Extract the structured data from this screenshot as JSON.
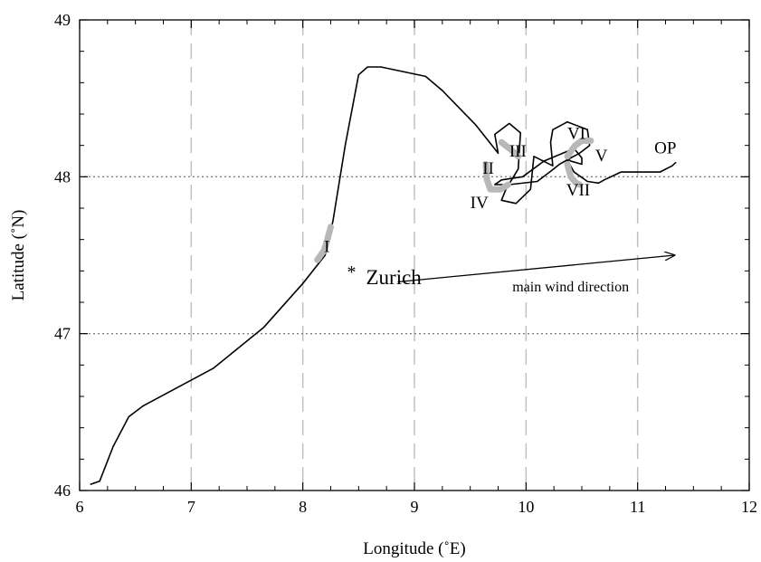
{
  "chart_data": {
    "type": "line",
    "xlabel": "Longitude (˚E)",
    "ylabel": "Latitude (˚N)",
    "xlim": [
      6,
      12
    ],
    "ylim": [
      46,
      49
    ],
    "xticks": [
      6,
      7,
      8,
      9,
      10,
      11,
      12
    ],
    "yticks": [
      46,
      47,
      48,
      49
    ],
    "vertical_grid": {
      "x": [
        7,
        8,
        9,
        10,
        11
      ],
      "style": "dashed",
      "color": "#c0c0c0"
    },
    "horizontal_grid": {
      "y": [
        47,
        48
      ],
      "style": "dotted",
      "color": "#808080"
    },
    "series": [
      {
        "color": "#000000",
        "points": [
          [
            6.1,
            46.04
          ],
          [
            6.18,
            46.06
          ],
          [
            6.3,
            46.28
          ],
          [
            6.44,
            46.47
          ],
          [
            6.57,
            46.54
          ],
          [
            7.2,
            46.78
          ],
          [
            7.65,
            47.04
          ],
          [
            8.0,
            47.32
          ],
          [
            8.2,
            47.5
          ],
          [
            8.27,
            47.72
          ],
          [
            8.38,
            48.2
          ],
          [
            8.5,
            48.65
          ],
          [
            8.58,
            48.7
          ],
          [
            8.7,
            48.7
          ],
          [
            9.1,
            48.64
          ],
          [
            9.25,
            48.55
          ],
          [
            9.55,
            48.33
          ],
          [
            9.75,
            48.15
          ],
          [
            9.72,
            48.27
          ],
          [
            9.85,
            48.34
          ],
          [
            9.95,
            48.28
          ],
          [
            9.93,
            48.05
          ],
          [
            9.82,
            47.92
          ],
          [
            9.78,
            47.85
          ],
          [
            9.91,
            47.83
          ],
          [
            10.04,
            47.92
          ],
          [
            10.07,
            48.13
          ],
          [
            10.24,
            48.07
          ],
          [
            10.22,
            48.22
          ],
          [
            10.24,
            48.3
          ],
          [
            10.37,
            48.35
          ],
          [
            10.55,
            48.3
          ],
          [
            10.57,
            48.2
          ],
          [
            10.48,
            48.15
          ],
          [
            10.4,
            48.12
          ],
          [
            10.3,
            48.08
          ],
          [
            10.23,
            48.04
          ],
          [
            10.1,
            47.97
          ],
          [
            9.85,
            47.95
          ],
          [
            9.72,
            47.95
          ],
          [
            9.78,
            47.98
          ],
          [
            9.97,
            48.0
          ],
          [
            10.16,
            48.1
          ],
          [
            10.33,
            48.15
          ],
          [
            10.43,
            48.18
          ],
          [
            10.5,
            48.12
          ],
          [
            10.5,
            48.08
          ],
          [
            10.4,
            48.1
          ],
          [
            10.36,
            48.12
          ],
          [
            10.43,
            48.03
          ],
          [
            10.55,
            47.97
          ],
          [
            10.65,
            47.96
          ],
          [
            10.7,
            47.98
          ],
          [
            10.85,
            48.03
          ],
          [
            11.2,
            48.03
          ],
          [
            11.31,
            48.07
          ],
          [
            11.34,
            48.09
          ]
        ]
      },
      {
        "name": "I",
        "color": "#b8b8b8",
        "points": [
          [
            8.13,
            47.47
          ],
          [
            8.19,
            47.53
          ],
          [
            8.22,
            47.6
          ],
          [
            8.25,
            47.68
          ]
        ]
      },
      {
        "name": "II",
        "color": "#b8b8b8",
        "points": [
          [
            9.64,
            48.08
          ],
          [
            9.65,
            47.98
          ],
          [
            9.68,
            47.92
          ],
          [
            9.77,
            47.92
          ],
          [
            9.84,
            47.95
          ]
        ]
      },
      {
        "name": "III",
        "color": "#b8b8b8",
        "points": [
          [
            9.78,
            48.22
          ],
          [
            9.87,
            48.17
          ],
          [
            9.93,
            48.13
          ]
        ]
      },
      {
        "name": "V",
        "color": "#b8b8b8",
        "points": [
          [
            10.37,
            48.13
          ],
          [
            10.44,
            48.2
          ],
          [
            10.5,
            48.23
          ],
          [
            10.58,
            48.23
          ]
        ]
      },
      {
        "name": "VII",
        "color": "#b8b8b8",
        "points": [
          [
            10.37,
            48.08
          ],
          [
            10.4,
            48.0
          ],
          [
            10.45,
            47.96
          ],
          [
            10.48,
            47.95
          ]
        ]
      }
    ],
    "labels": [
      {
        "text": "I",
        "x": 8.19,
        "y": 47.52
      },
      {
        "text": "II",
        "x": 9.61,
        "y": 48.02
      },
      {
        "text": "III",
        "x": 9.85,
        "y": 48.13
      },
      {
        "text": "IV",
        "x": 9.5,
        "y": 47.8
      },
      {
        "text": "V",
        "x": 10.62,
        "y": 48.1
      },
      {
        "text": "VI",
        "x": 10.37,
        "y": 48.24
      },
      {
        "text": "VII",
        "x": 10.36,
        "y": 47.88
      },
      {
        "text": "OP",
        "x": 11.15,
        "y": 48.15
      }
    ],
    "city": {
      "marker": "*",
      "name": "Zurich",
      "x": 8.55,
      "y": 47.38
    },
    "arrow": {
      "label": "main wind direction",
      "from": [
        8.42,
        47.35
      ],
      "to": [
        11.33,
        47.5
      ]
    }
  }
}
